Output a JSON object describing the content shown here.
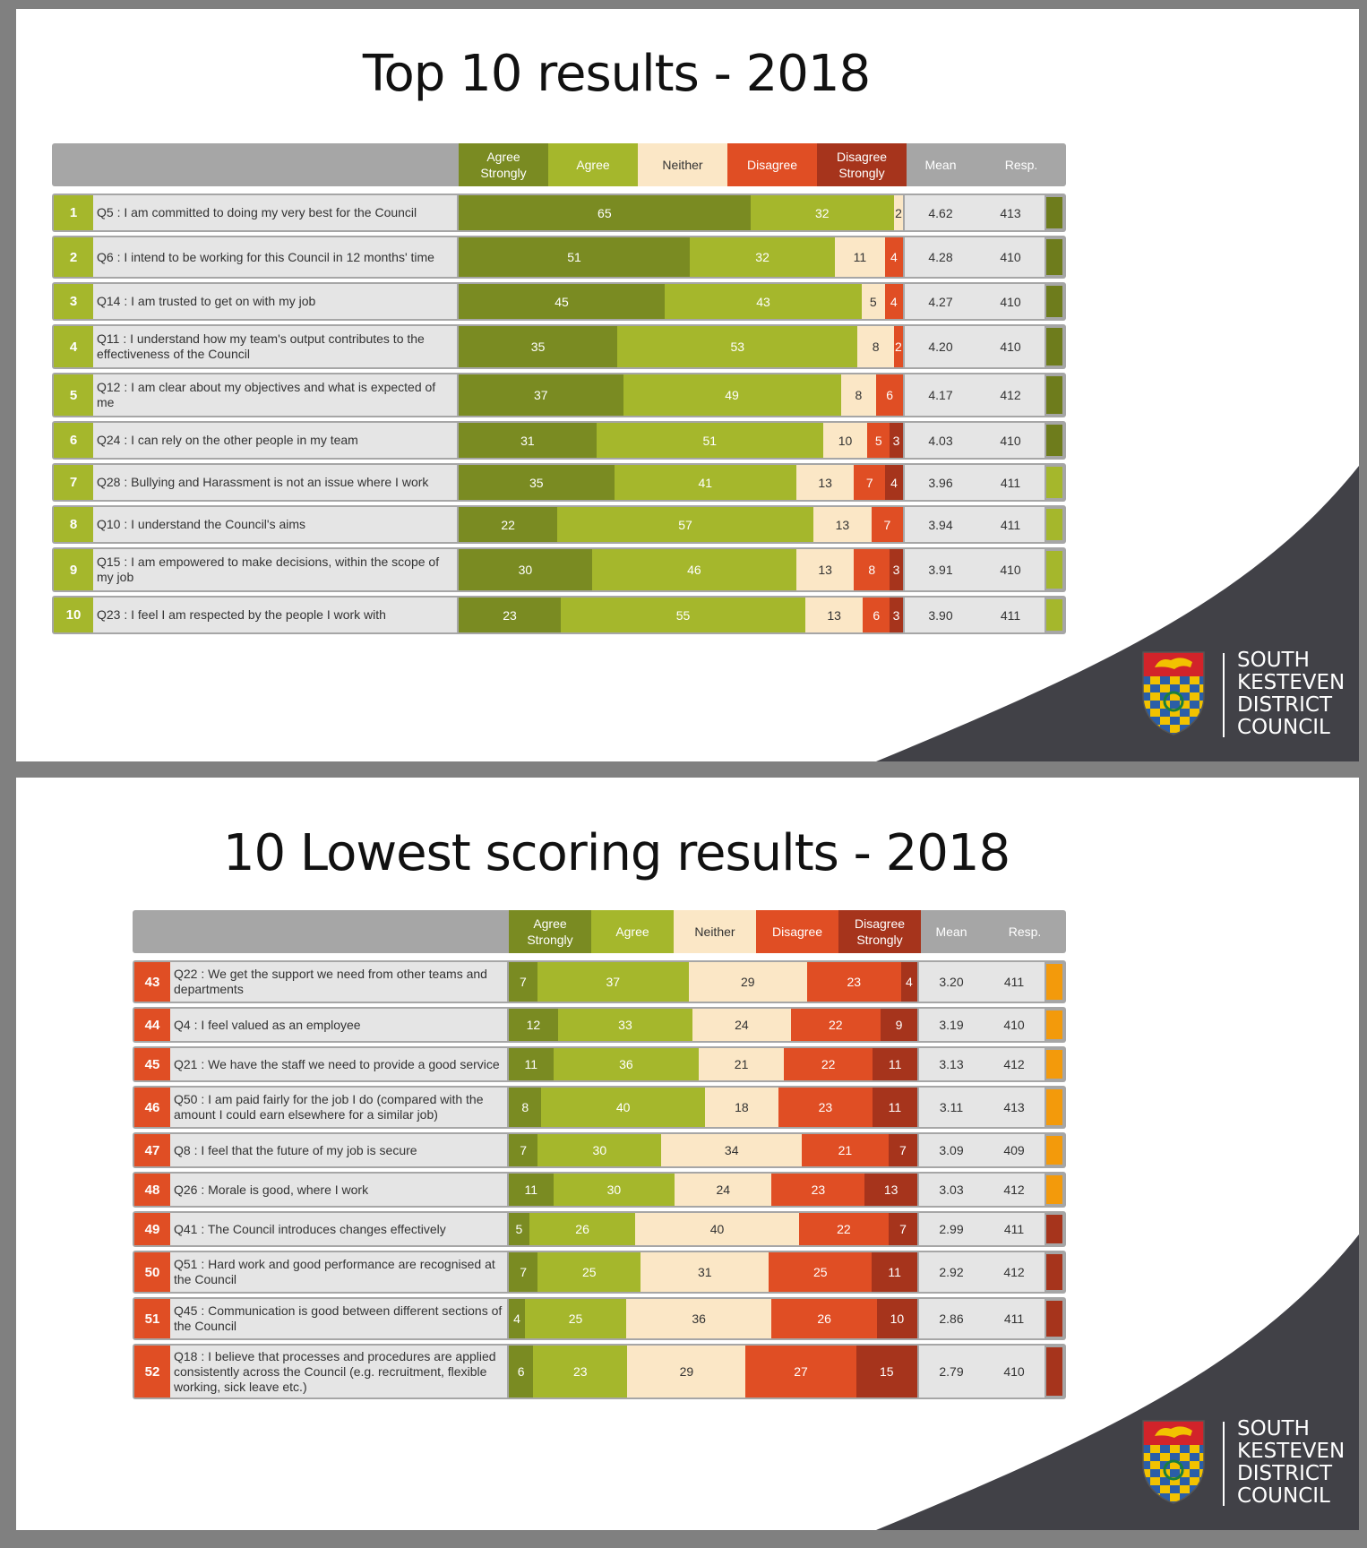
{
  "colors": {
    "agree_strongly": "#7a8b22",
    "agree": "#a5b72c",
    "neither": "#fbe7c6",
    "disagree": "#e04e24",
    "disagree_strongly": "#a6341c",
    "header": "#a6a6a6",
    "rank_top": "#a5b72c",
    "rank_low": "#e04e24",
    "flag_dark_green": "#6e7c1c",
    "flag_light_green": "#a5b72c",
    "flag_orange": "#f39a0b",
    "flag_dark_red": "#a6341c"
  },
  "columns": {
    "agree_strongly": "Agree\nStrongly",
    "agree": "Agree",
    "neither": "Neither",
    "disagree": "Disagree",
    "disagree_strongly": "Disagree\nStrongly",
    "mean": "Mean",
    "resp": "Resp."
  },
  "logo": {
    "lines": [
      "SOUTH",
      "KESTEVEN",
      "DISTRICT",
      "COUNCIL"
    ]
  },
  "chart_data": [
    {
      "type": "bar",
      "title": "Top 10 results - 2018",
      "rows": [
        {
          "rank": "1",
          "question": "Q5 : I am committed to doing my very best for the Council",
          "values": [
            65,
            32,
            2,
            0,
            0
          ],
          "labels": [
            "65",
            "32",
            "2",
            "",
            ""
          ],
          "mean": "4.62",
          "resp": "413",
          "flag": "dark_green"
        },
        {
          "rank": "2",
          "question": "Q6 : I intend to be working for this Council in 12 months' time",
          "values": [
            51,
            32,
            11,
            4,
            0
          ],
          "labels": [
            "51",
            "32",
            "11",
            "4",
            ""
          ],
          "mean": "4.28",
          "resp": "410",
          "flag": "dark_green"
        },
        {
          "rank": "3",
          "question": "Q14 : I am trusted to get on with my job",
          "values": [
            45,
            43,
            5,
            4,
            0
          ],
          "labels": [
            "45",
            "43",
            "5",
            "4",
            ""
          ],
          "mean": "4.27",
          "resp": "410",
          "flag": "dark_green"
        },
        {
          "rank": "4",
          "question": "Q11 : I understand how my team's output contributes to the effectiveness of the Council",
          "values": [
            35,
            53,
            8,
            2,
            0
          ],
          "labels": [
            "35",
            "53",
            "8",
            "2",
            ""
          ],
          "mean": "4.20",
          "resp": "410",
          "flag": "dark_green"
        },
        {
          "rank": "5",
          "question": "Q12 : I am clear about my objectives and what is expected of me",
          "values": [
            37,
            49,
            8,
            6,
            0
          ],
          "labels": [
            "37",
            "49",
            "8",
            "6",
            ""
          ],
          "mean": "4.17",
          "resp": "412",
          "flag": "dark_green"
        },
        {
          "rank": "6",
          "question": "Q24 : I can rely on the other people in my team",
          "values": [
            31,
            51,
            10,
            5,
            3
          ],
          "labels": [
            "31",
            "51",
            "10",
            "5",
            "3"
          ],
          "mean": "4.03",
          "resp": "410",
          "flag": "dark_green"
        },
        {
          "rank": "7",
          "question": "Q28 : Bullying and Harassment is not an issue where I work",
          "values": [
            35,
            41,
            13,
            7,
            4
          ],
          "labels": [
            "35",
            "41",
            "13",
            "7",
            "4"
          ],
          "mean": "3.96",
          "resp": "411",
          "flag": "light_green"
        },
        {
          "rank": "8",
          "question": "Q10 : I understand the Council's aims",
          "values": [
            22,
            57,
            13,
            7,
            0
          ],
          "labels": [
            "22",
            "57",
            "13",
            "7",
            ""
          ],
          "mean": "3.94",
          "resp": "411",
          "flag": "light_green"
        },
        {
          "rank": "9",
          "question": "Q15 : I am empowered to make decisions, within the scope of my job",
          "values": [
            30,
            46,
            13,
            8,
            3
          ],
          "labels": [
            "30",
            "46",
            "13",
            "8",
            "3"
          ],
          "mean": "3.91",
          "resp": "410",
          "flag": "light_green"
        },
        {
          "rank": "10",
          "question": "Q23 : I feel I am respected by the people I work with",
          "values": [
            23,
            55,
            13,
            6,
            3
          ],
          "labels": [
            "23",
            "55",
            "13",
            "6",
            "3"
          ],
          "mean": "3.90",
          "resp": "411",
          "flag": "light_green"
        }
      ]
    },
    {
      "type": "bar",
      "title": "10 Lowest scoring results - 2018",
      "rows": [
        {
          "rank": "43",
          "question": "Q22 : We get the support we need from other teams and departments",
          "values": [
            7,
            37,
            29,
            23,
            4
          ],
          "labels": [
            "7",
            "37",
            "29",
            "23",
            "4"
          ],
          "mean": "3.20",
          "resp": "411",
          "flag": "orange"
        },
        {
          "rank": "44",
          "question": "Q4 : I feel valued as an employee",
          "values": [
            12,
            33,
            24,
            22,
            9
          ],
          "labels": [
            "12",
            "33",
            "24",
            "22",
            "9"
          ],
          "mean": "3.19",
          "resp": "410",
          "flag": "orange"
        },
        {
          "rank": "45",
          "question": "Q21 : We have the staff we need to provide a good service",
          "values": [
            11,
            36,
            21,
            22,
            11
          ],
          "labels": [
            "11",
            "36",
            "21",
            "22",
            "11"
          ],
          "mean": "3.13",
          "resp": "412",
          "flag": "orange"
        },
        {
          "rank": "46",
          "question": "Q50 : I am paid fairly for the job I do (compared with the amount I could earn elsewhere for a similar job)",
          "values": [
            8,
            40,
            18,
            23,
            11
          ],
          "labels": [
            "8",
            "40",
            "18",
            "23",
            "11"
          ],
          "mean": "3.11",
          "resp": "413",
          "flag": "orange"
        },
        {
          "rank": "47",
          "question": "Q8 : I feel that the future of my job is secure",
          "values": [
            7,
            30,
            34,
            21,
            7
          ],
          "labels": [
            "7",
            "30",
            "34",
            "21",
            "7"
          ],
          "mean": "3.09",
          "resp": "409",
          "flag": "orange"
        },
        {
          "rank": "48",
          "question": "Q26 : Morale is good, where I work",
          "values": [
            11,
            30,
            24,
            23,
            13
          ],
          "labels": [
            "11",
            "30",
            "24",
            "23",
            "13"
          ],
          "mean": "3.03",
          "resp": "412",
          "flag": "orange"
        },
        {
          "rank": "49",
          "question": "Q41 : The Council introduces changes effectively",
          "values": [
            5,
            26,
            40,
            22,
            7
          ],
          "labels": [
            "5",
            "26",
            "40",
            "22",
            "7"
          ],
          "mean": "2.99",
          "resp": "411",
          "flag": "dark_red"
        },
        {
          "rank": "50",
          "question": "Q51 : Hard work and good performance are recognised at the Council",
          "values": [
            7,
            25,
            31,
            25,
            11
          ],
          "labels": [
            "7",
            "25",
            "31",
            "25",
            "11"
          ],
          "mean": "2.92",
          "resp": "412",
          "flag": "dark_red"
        },
        {
          "rank": "51",
          "question": "Q45 : Communication is good between different sections of the Council",
          "values": [
            4,
            25,
            36,
            26,
            10
          ],
          "labels": [
            "4",
            "25",
            "36",
            "26",
            "10"
          ],
          "mean": "2.86",
          "resp": "411",
          "flag": "dark_red"
        },
        {
          "rank": "52",
          "question": "Q18 : I believe that processes and procedures are applied consistently across the Council (e.g. recruitment, flexible working, sick leave etc.)",
          "values": [
            6,
            23,
            29,
            27,
            15
          ],
          "labels": [
            "6",
            "23",
            "29",
            "27",
            "15"
          ],
          "mean": "2.79",
          "resp": "410",
          "flag": "dark_red"
        }
      ]
    }
  ]
}
